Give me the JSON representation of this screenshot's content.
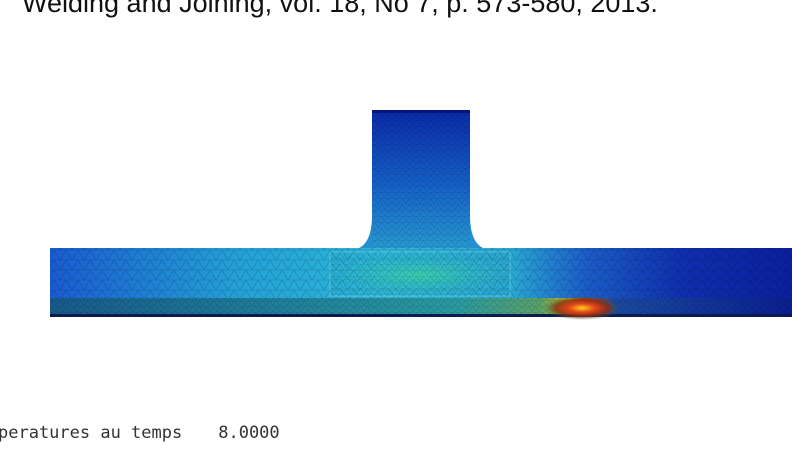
{
  "header": {
    "citation": "Welding and Joining, vol. 18, No 7, p. 573-580, 2013."
  },
  "figure": {
    "caption_label": "peratures au temps",
    "caption_time": "8.0000",
    "colors": {
      "cold": "#0a1f9e",
      "mid": "#2fb4d8",
      "hot": "#d73a1a",
      "warm": "#ffd21a"
    }
  }
}
